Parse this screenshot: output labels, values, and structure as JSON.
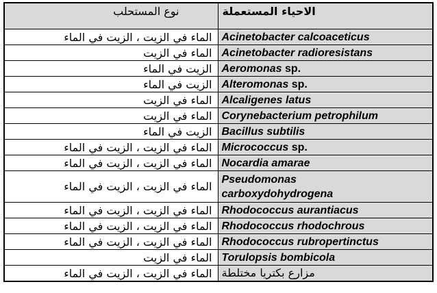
{
  "table": {
    "header": {
      "organisms": "الاحياء المستعملة",
      "emulsion_type": "نوع المستحلب"
    },
    "rows": [
      {
        "latin": "Acinetobacter calcoaceticus",
        "plain": "",
        "arabic": "",
        "emulsion": "الماء في الزيت ، الزيت في الماء",
        "tall": false
      },
      {
        "latin": "Acinetobacter radioresistans",
        "plain": "",
        "arabic": "",
        "emulsion": "الماء في الزيت",
        "tall": false
      },
      {
        "latin": "Aeromonas",
        "plain": " sp.",
        "arabic": "",
        "emulsion": "الزيت في الماء",
        "tall": false
      },
      {
        "latin": "Alteromonas",
        "plain": " sp.",
        "arabic": "",
        "emulsion": "الزيت في الماء",
        "tall": false
      },
      {
        "latin": "Alcaligenes latus",
        "plain": "",
        "arabic": "",
        "emulsion": "الماء في الزيت",
        "tall": false
      },
      {
        "latin": "Corynebacterium petrophilum",
        "plain": "",
        "arabic": "",
        "emulsion": "الماء في الزيت",
        "tall": false
      },
      {
        "latin": "Bacillus subtilis",
        "plain": "",
        "arabic": "",
        "emulsion": "الزيت في الماء",
        "tall": false
      },
      {
        "latin": "Micrococcus",
        "plain": " sp.",
        "arabic": "",
        "emulsion": "الماء في الزيت ، الزيت في الماء",
        "tall": false
      },
      {
        "latin": "Nocardia amarae",
        "plain": "",
        "arabic": "",
        "emulsion": "الماء في الزيت ، الزيت في الماء",
        "tall": false
      },
      {
        "latin": "Pseudomonas\ncarboxydohydrogena",
        "plain": "",
        "arabic": "",
        "emulsion": "الماء في الزيت ، الزيت في الماء",
        "tall": true
      },
      {
        "latin": "Rhodococcus aurantiacus",
        "plain": "",
        "arabic": "",
        "emulsion": "الماء في الزيت ، الزيت في الماء",
        "tall": false
      },
      {
        "latin": "Rhodococcus rhodochrous",
        "plain": "",
        "arabic": "",
        "emulsion": "الماء في الزيت ، الزيت في الماء",
        "tall": false
      },
      {
        "latin": "Rhodococcus rubropertinctus",
        "plain": "",
        "arabic": "",
        "emulsion": "الماء في الزيت ، الزيت في الماء",
        "tall": false
      },
      {
        "latin": "Torulopsis bombicola",
        "plain": "",
        "arabic": "",
        "emulsion": "الماء في الزيت",
        "tall": false
      },
      {
        "latin": "",
        "plain": "",
        "arabic": "مزارع بكتريا مختلطة",
        "emulsion": "الماء في الزيت ، الزيت في الماء",
        "tall": false
      }
    ],
    "colors": {
      "header_bg": "#d9d9d9",
      "organism_cell_bg": "#d9d9d9",
      "border": "#000000"
    }
  }
}
